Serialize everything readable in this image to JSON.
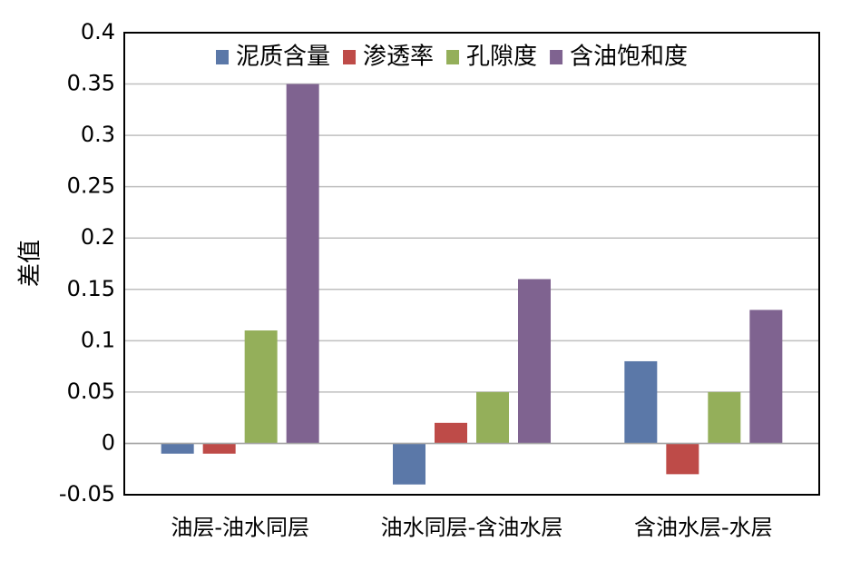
{
  "chart_data": {
    "type": "bar",
    "title": "",
    "xlabel": "",
    "ylabel": "差值",
    "ylim": [
      -0.05,
      0.4
    ],
    "yticks": [
      "0.4",
      "0.35",
      "0.3",
      "0.25",
      "0.2",
      "0.15",
      "0.1",
      "0.05",
      "0",
      "-0.05"
    ],
    "ytick_values": [
      0.4,
      0.35,
      0.3,
      0.25,
      0.2,
      0.15,
      0.1,
      0.05,
      0,
      -0.05
    ],
    "grid": true,
    "legend_position": "top",
    "categories": [
      "油层-油水同层",
      "油水同层-含油水层",
      "含油水层-水层"
    ],
    "series": [
      {
        "name": "泥质含量",
        "color": "#5B78A8",
        "values": [
          -0.01,
          -0.04,
          0.08
        ]
      },
      {
        "name": "渗透率",
        "color": "#BE4B48",
        "values": [
          -0.01,
          0.02,
          -0.03
        ]
      },
      {
        "name": "孔隙度",
        "color": "#94AF5A",
        "values": [
          0.11,
          0.05,
          0.05
        ]
      },
      {
        "name": "含油饱和度",
        "color": "#7F6390",
        "values": [
          0.35,
          0.16,
          0.13
        ]
      }
    ]
  }
}
